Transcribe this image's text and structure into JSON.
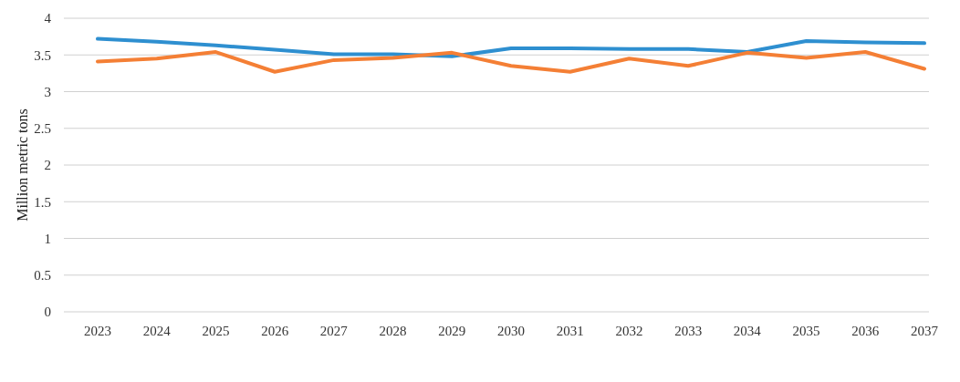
{
  "chart_data": {
    "type": "line",
    "ylabel": "Million metric tons",
    "categories": [
      "2023",
      "2024",
      "2025",
      "2026",
      "2027",
      "2028",
      "2029",
      "2030",
      "2031",
      "2032",
      "2033",
      "2034",
      "2035",
      "2036",
      "2037"
    ],
    "series": [
      {
        "color": "#2e8fd0",
        "values": [
          3.72,
          3.68,
          3.63,
          3.57,
          3.51,
          3.51,
          3.48,
          3.59,
          3.59,
          3.58,
          3.58,
          3.54,
          3.69,
          3.67,
          3.66
        ]
      },
      {
        "color": "#f47f35",
        "values": [
          3.41,
          3.45,
          3.54,
          3.27,
          3.43,
          3.46,
          3.53,
          3.35,
          3.27,
          3.45,
          3.35,
          3.53,
          3.46,
          3.54,
          3.31
        ]
      }
    ],
    "ylim": [
      0,
      4
    ],
    "yticks": [
      0,
      0.5,
      1,
      1.5,
      2,
      2.5,
      3,
      3.5,
      4
    ],
    "grid": "y",
    "line_style": "solid"
  }
}
